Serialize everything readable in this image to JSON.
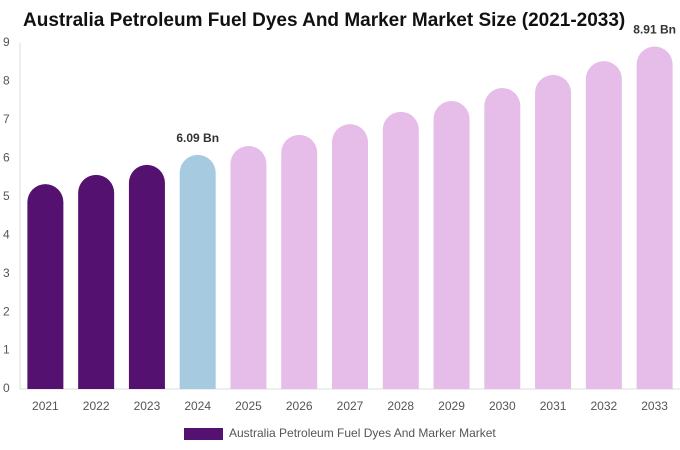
{
  "chart_data": {
    "type": "bar",
    "title": "Australia Petroleum Fuel Dyes And Marker Market Size (2021-2033)",
    "categories": [
      "2021",
      "2022",
      "2023",
      "2024",
      "2025",
      "2026",
      "2027",
      "2028",
      "2029",
      "2030",
      "2031",
      "2032",
      "2033"
    ],
    "series": [
      {
        "name": "Australia Petroleum Fuel Dyes And Marker Market",
        "color": "#541170",
        "values": [
          5.33,
          5.57,
          5.83,
          6.09,
          6.32,
          6.61,
          6.89,
          7.21,
          7.49,
          7.83,
          8.17,
          8.53,
          8.91
        ],
        "value_labels": [
          null,
          null,
          null,
          "6.09 Bn",
          null,
          null,
          null,
          null,
          null,
          null,
          null,
          null,
          "8.91 Bn"
        ],
        "colors": [
          "#541170",
          "#541170",
          "#541170",
          "#a6cadf",
          "#e6bde8",
          "#e6bde8",
          "#e6bde8",
          "#e6bde8",
          "#e6bde8",
          "#e6bde8",
          "#e6bde8",
          "#e6bde8",
          "#e6bde8"
        ]
      }
    ],
    "ylim": [
      0,
      9
    ],
    "yticks": [
      0,
      1,
      2,
      3,
      4,
      5,
      6,
      7,
      8,
      9
    ],
    "grid": false
  }
}
